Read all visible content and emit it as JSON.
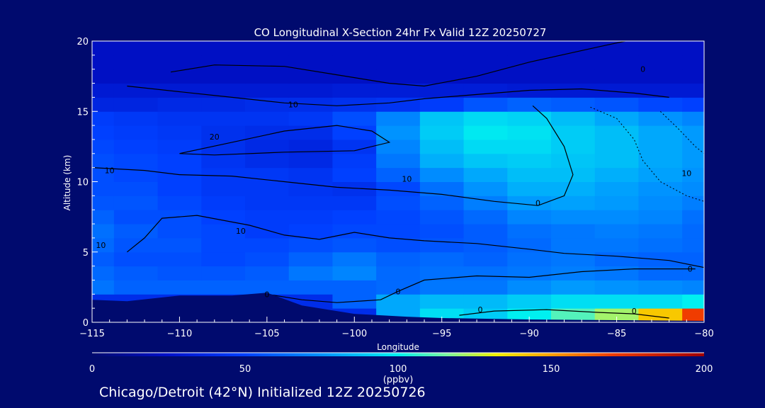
{
  "chart_data": {
    "type": "heatmap",
    "title": "CO Longitudinal X-Section 24hr  Fx Valid 12Z 20250727",
    "xlabel": "Longitude",
    "ylabel": "Altitude (km)",
    "xlim": [
      -115,
      -80
    ],
    "ylim": [
      0,
      20
    ],
    "x_ticks": [
      "-115",
      "-110",
      "-105",
      "-100",
      "-95",
      "-90",
      "-85",
      "-80"
    ],
    "y_ticks": [
      "0",
      "5",
      "10",
      "15",
      "20"
    ],
    "colorbar": {
      "min": 0,
      "max": 200,
      "ticks": [
        "0",
        "50",
        "100",
        "150",
        "200"
      ],
      "unit": "(ppbv)"
    },
    "x": [
      -115,
      -112.5,
      -110,
      -107.5,
      -105,
      -102.5,
      -100,
      -97.5,
      -95,
      -92.5,
      -90,
      -87.5,
      -85,
      -82.5,
      -80
    ],
    "y": [
      0.5,
      1.5,
      2.5,
      3.5,
      4.5,
      5.5,
      6.5,
      7.5,
      8.5,
      9.5,
      10.5,
      11.5,
      12.5,
      13.5,
      14.5,
      15.5,
      16.5,
      17.5,
      18.5,
      19.5
    ],
    "z": [
      [
        40,
        40,
        40,
        40,
        40,
        40,
        40,
        80,
        95,
        90,
        100,
        110,
        120,
        140,
        170
      ],
      [
        40,
        40,
        40,
        40,
        40,
        40,
        60,
        80,
        85,
        85,
        90,
        95,
        95,
        95,
        100
      ],
      [
        65,
        60,
        60,
        60,
        60,
        60,
        60,
        62,
        66,
        66,
        72,
        76,
        74,
        72,
        70
      ],
      [
        62,
        58,
        56,
        56,
        58,
        66,
        70,
        62,
        64,
        64,
        66,
        68,
        66,
        62,
        62
      ],
      [
        58,
        54,
        54,
        52,
        54,
        60,
        66,
        60,
        62,
        60,
        64,
        66,
        62,
        60,
        60
      ],
      [
        62,
        56,
        56,
        52,
        52,
        54,
        56,
        54,
        56,
        58,
        62,
        66,
        66,
        64,
        62
      ],
      [
        64,
        58,
        54,
        52,
        48,
        50,
        52,
        52,
        54,
        58,
        64,
        66,
        68,
        66,
        62
      ],
      [
        60,
        54,
        54,
        50,
        48,
        48,
        50,
        52,
        56,
        62,
        70,
        72,
        72,
        70,
        64
      ],
      [
        56,
        56,
        52,
        48,
        46,
        46,
        46,
        54,
        60,
        68,
        76,
        78,
        76,
        72,
        68
      ],
      [
        54,
        54,
        50,
        46,
        46,
        44,
        42,
        52,
        64,
        74,
        82,
        82,
        78,
        74,
        72
      ],
      [
        54,
        52,
        50,
        46,
        46,
        44,
        50,
        60,
        72,
        80,
        86,
        86,
        82,
        78,
        74
      ],
      [
        54,
        52,
        50,
        44,
        40,
        38,
        48,
        66,
        82,
        88,
        90,
        88,
        86,
        80,
        76
      ],
      [
        52,
        50,
        48,
        42,
        38,
        36,
        44,
        70,
        86,
        94,
        94,
        90,
        86,
        80,
        76
      ],
      [
        50,
        48,
        46,
        42,
        40,
        40,
        50,
        74,
        90,
        98,
        96,
        90,
        86,
        80,
        76
      ],
      [
        48,
        46,
        44,
        44,
        44,
        46,
        54,
        70,
        88,
        94,
        92,
        86,
        80,
        74,
        70
      ],
      [
        36,
        36,
        38,
        38,
        40,
        40,
        42,
        44,
        48,
        56,
        60,
        58,
        56,
        52,
        50
      ],
      [
        30,
        30,
        30,
        30,
        30,
        30,
        32,
        32,
        32,
        32,
        30,
        30,
        30,
        30,
        30
      ],
      [
        24,
        24,
        24,
        24,
        24,
        24,
        24,
        24,
        24,
        24,
        24,
        24,
        24,
        24,
        24
      ],
      [
        24,
        24,
        24,
        24,
        24,
        24,
        24,
        24,
        24,
        24,
        24,
        24,
        24,
        24,
        24
      ],
      [
        24,
        24,
        24,
        24,
        24,
        24,
        24,
        24,
        24,
        24,
        24,
        24,
        24,
        24,
        24
      ]
    ],
    "terrain": [
      [
        -115,
        1.6
      ],
      [
        -113,
        1.5
      ],
      [
        -110,
        1.9
      ],
      [
        -107,
        1.9
      ],
      [
        -105,
        2.1
      ],
      [
        -103,
        1.2
      ],
      [
        -100,
        0.6
      ],
      [
        -97,
        0.4
      ],
      [
        -95,
        0.3
      ],
      [
        -90,
        0.2
      ],
      [
        -85,
        0.15
      ],
      [
        -80,
        0.1
      ]
    ],
    "contour_labels": [
      {
        "text": "10",
        "lon": -103.5,
        "alt": 15.5
      },
      {
        "text": "20",
        "lon": -108.0,
        "alt": 13.2
      },
      {
        "text": "10",
        "lon": -114.0,
        "alt": 10.8
      },
      {
        "text": "10",
        "lon": -97.0,
        "alt": 10.2
      },
      {
        "text": "0",
        "lon": -89.5,
        "alt": 8.5
      },
      {
        "text": "0",
        "lon": -83.5,
        "alt": 18.0
      },
      {
        "text": "10",
        "lon": -81.0,
        "alt": 10.6
      },
      {
        "text": "10",
        "lon": -106.5,
        "alt": 6.5
      },
      {
        "text": "10",
        "lon": -114.5,
        "alt": 5.5
      },
      {
        "text": "0",
        "lon": -80.8,
        "alt": 3.8
      },
      {
        "text": "0",
        "lon": -97.5,
        "alt": 2.2
      },
      {
        "text": "0",
        "lon": -92.8,
        "alt": 0.9
      },
      {
        "text": "0",
        "lon": -84.0,
        "alt": 0.8
      },
      {
        "text": "0",
        "lon": -105.0,
        "alt": 2.0
      }
    ]
  },
  "footer": {
    "text": "Chicago/Detroit (42°N) Initialized 12Z 20250726"
  }
}
